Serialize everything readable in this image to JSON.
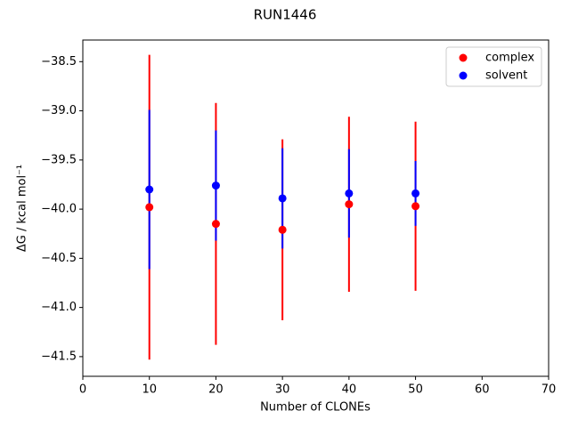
{
  "chart_data": {
    "type": "scatter",
    "title": "RUN1446",
    "x_label": "Number of CLONEs",
    "y_label": "ΔG / kcal mol⁻¹",
    "x": [
      10,
      20,
      30,
      40,
      50
    ],
    "series": [
      {
        "name": "complex",
        "color": "#ff0000",
        "values": [
          -39.98,
          -40.15,
          -40.21,
          -39.95,
          -39.97
        ],
        "errors": [
          1.55,
          1.23,
          0.92,
          0.89,
          0.86
        ]
      },
      {
        "name": "solvent",
        "color": "#0000ff",
        "values": [
          -39.8,
          -39.76,
          -39.89,
          -39.84,
          -39.84
        ],
        "errors": [
          0.81,
          0.56,
          0.51,
          0.45,
          0.33
        ]
      }
    ],
    "xlim": [
      0,
      70
    ],
    "xticks": [
      0,
      10,
      20,
      30,
      40,
      50,
      60,
      70
    ],
    "ylim": [
      -41.7,
      -38.28
    ],
    "yticks": [
      {
        "value": -38.5,
        "label": "−38.5"
      },
      {
        "value": -39.0,
        "label": "−39.0"
      },
      {
        "value": -39.5,
        "label": "−39.5"
      },
      {
        "value": -40.0,
        "label": "−40.0"
      },
      {
        "value": -40.5,
        "label": "−40.5"
      },
      {
        "value": -41.0,
        "label": "−41.0"
      },
      {
        "value": -41.5,
        "label": "−41.5"
      }
    ],
    "legend": "upper right",
    "grid": false
  }
}
